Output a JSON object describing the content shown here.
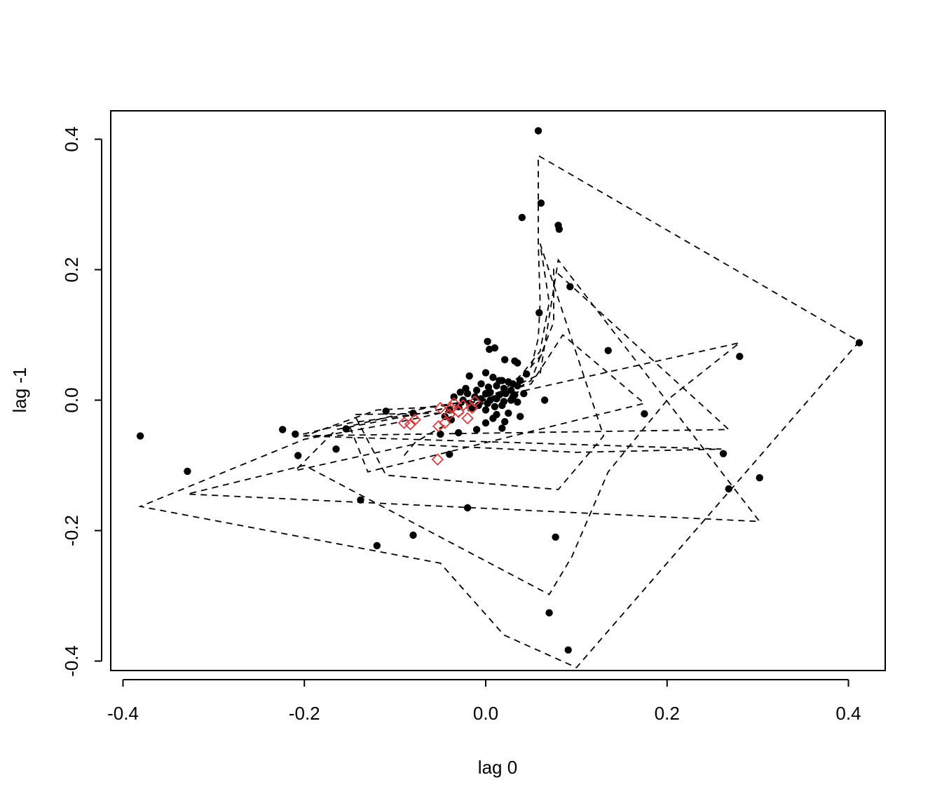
{
  "chart_data": {
    "type": "scatter",
    "title": "",
    "xlabel": "lag 0",
    "ylabel": "lag -1",
    "xlim": [
      -0.4,
      0.44
    ],
    "ylim": [
      -0.415,
      0.445
    ],
    "xticks": [
      -0.4,
      -0.2,
      0.0,
      0.2,
      0.4
    ],
    "xtick_labels": [
      "-0.4",
      "-0.2",
      "0.0",
      "0.2",
      "0.4"
    ],
    "yticks": [
      -0.4,
      -0.2,
      0.0,
      0.2,
      0.4
    ],
    "ytick_labels": [
      "-0.4",
      "-0.2",
      "0.0",
      "0.2",
      "0.4"
    ],
    "grid": false,
    "legend": "none",
    "colors": {
      "points": "#000000",
      "highlight": "#df3b3b",
      "path": "#000000"
    },
    "series": [
      {
        "kind": "points",
        "marker": "filled-circle",
        "points": [
          [
            0.058,
            0.413
          ],
          [
            0.061,
            0.302
          ],
          [
            0.04,
            0.28
          ],
          [
            0.08,
            0.268
          ],
          [
            0.081,
            0.262
          ],
          [
            0.093,
            0.174
          ],
          [
            0.059,
            0.134
          ],
          [
            0.412,
            0.088
          ],
          [
            0.28,
            0.067
          ],
          [
            0.135,
            0.076
          ],
          [
            -0.381,
            -0.055
          ],
          [
            -0.329,
            -0.109
          ],
          [
            -0.224,
            -0.045
          ],
          [
            -0.21,
            -0.052
          ],
          [
            -0.207,
            -0.085
          ],
          [
            -0.165,
            -0.075
          ],
          [
            -0.154,
            -0.044
          ],
          [
            -0.138,
            -0.153
          ],
          [
            -0.12,
            -0.223
          ],
          [
            -0.11,
            -0.017
          ],
          [
            -0.08,
            -0.02
          ],
          [
            -0.08,
            -0.207
          ],
          [
            -0.05,
            -0.052
          ],
          [
            -0.04,
            -0.083
          ],
          [
            -0.03,
            -0.05
          ],
          [
            -0.02,
            -0.165
          ],
          [
            -0.01,
            -0.045
          ],
          [
            0.0,
            -0.035
          ],
          [
            0.018,
            -0.043
          ],
          [
            0.021,
            -0.033
          ],
          [
            0.038,
            -0.025
          ],
          [
            0.065,
            0.0
          ],
          [
            0.175,
            -0.021
          ],
          [
            0.262,
            -0.082
          ],
          [
            0.268,
            -0.136
          ],
          [
            0.302,
            -0.119
          ],
          [
            0.077,
            -0.21
          ],
          [
            0.07,
            -0.326
          ],
          [
            0.091,
            -0.383
          ],
          [
            0.002,
            0.09
          ],
          [
            0.004,
            0.078
          ],
          [
            0.01,
            0.08
          ],
          [
            0.021,
            0.062
          ],
          [
            0.032,
            0.06
          ],
          [
            0.035,
            0.057
          ],
          [
            0.045,
            0.04
          ],
          [
            -0.018,
            0.037
          ],
          [
            0.0,
            0.042
          ],
          [
            0.008,
            0.035
          ],
          [
            0.015,
            0.03
          ],
          [
            0.025,
            0.028
          ],
          [
            0.03,
            0.025
          ],
          [
            0.038,
            0.03
          ],
          [
            -0.005,
            0.025
          ],
          [
            0.003,
            0.02
          ],
          [
            0.012,
            0.022
          ],
          [
            0.02,
            0.018
          ],
          [
            0.028,
            0.015
          ],
          [
            0.035,
            0.022
          ],
          [
            -0.01,
            0.015
          ],
          [
            0.0,
            0.01
          ],
          [
            0.005,
            0.012
          ],
          [
            0.015,
            0.008
          ],
          [
            0.022,
            0.01
          ],
          [
            0.03,
            0.005
          ],
          [
            -0.02,
            0.01
          ],
          [
            -0.012,
            0.005
          ],
          [
            -0.005,
            0.002
          ],
          [
            0.005,
            0.0
          ],
          [
            0.012,
            0.002
          ],
          [
            0.02,
            -0.002
          ],
          [
            0.028,
            0.0
          ],
          [
            -0.025,
            0.0
          ],
          [
            -0.018,
            -0.005
          ],
          [
            -0.008,
            -0.008
          ],
          [
            0.002,
            -0.005
          ],
          [
            0.01,
            -0.01
          ],
          [
            0.018,
            -0.008
          ],
          [
            0.035,
            -0.003
          ],
          [
            -0.03,
            -0.01
          ],
          [
            -0.035,
            0.005
          ],
          [
            -0.028,
            0.012
          ],
          [
            -0.015,
            -0.012
          ],
          [
            0.0,
            -0.015
          ],
          [
            0.012,
            -0.022
          ],
          [
            0.025,
            -0.02
          ],
          [
            -0.04,
            -0.015
          ],
          [
            -0.045,
            -0.025
          ],
          [
            -0.038,
            -0.03
          ],
          [
            0.018,
            0.03
          ],
          [
            0.008,
            -0.028
          ],
          [
            -0.022,
            0.018
          ],
          [
            0.032,
            0.008
          ],
          [
            0.042,
            0.01
          ]
        ]
      },
      {
        "kind": "points",
        "marker": "open-diamond",
        "color": "red",
        "points": [
          [
            -0.09,
            -0.035
          ],
          [
            -0.083,
            -0.037
          ],
          [
            -0.078,
            -0.03
          ],
          [
            -0.053,
            -0.091
          ],
          [
            -0.052,
            -0.04
          ],
          [
            -0.05,
            -0.012
          ],
          [
            -0.045,
            -0.035
          ],
          [
            -0.04,
            -0.022
          ],
          [
            -0.038,
            -0.012
          ],
          [
            -0.035,
            -0.005
          ],
          [
            -0.03,
            -0.018
          ],
          [
            -0.025,
            -0.008
          ],
          [
            -0.02,
            -0.028
          ],
          [
            -0.015,
            -0.012
          ],
          [
            -0.012,
            -0.002
          ]
        ]
      },
      {
        "kind": "path",
        "line": "dashed",
        "points": [
          [
            -0.09,
            -0.085
          ],
          [
            -0.078,
            -0.065
          ],
          [
            -0.06,
            -0.05
          ],
          [
            -0.04,
            -0.035
          ],
          [
            -0.025,
            -0.02
          ],
          [
            -0.01,
            -0.01
          ],
          [
            0.005,
            0.0
          ],
          [
            0.02,
            0.01
          ],
          [
            0.035,
            0.025
          ],
          [
            0.05,
            0.05
          ],
          [
            0.058,
            0.095
          ],
          [
            0.06,
            0.15
          ],
          [
            0.058,
            0.24
          ],
          [
            0.058,
            0.375
          ],
          [
            0.412,
            0.09
          ],
          [
            0.1,
            -0.41
          ],
          [
            0.02,
            -0.36
          ],
          [
            -0.05,
            -0.25
          ],
          [
            -0.381,
            -0.163
          ],
          [
            -0.2,
            -0.06
          ],
          [
            -0.1,
            -0.035
          ],
          [
            -0.05,
            -0.02
          ],
          [
            -0.02,
            -0.01
          ],
          [
            0.0,
            0.0
          ],
          [
            0.02,
            0.015
          ],
          [
            0.04,
            0.04
          ],
          [
            0.06,
            0.075
          ],
          [
            0.07,
            0.15
          ],
          [
            0.06,
            0.24
          ],
          [
            0.13,
            -0.055
          ],
          [
            0.08,
            -0.137
          ],
          [
            -0.11,
            -0.115
          ],
          [
            -0.145,
            -0.022
          ],
          [
            -0.05,
            -0.02
          ],
          [
            0.01,
            0.0
          ],
          [
            0.05,
            0.03
          ],
          [
            0.075,
            0.12
          ],
          [
            0.075,
            0.2
          ],
          [
            0.268,
            -0.045
          ],
          [
            -0.21,
            -0.055
          ],
          [
            -0.15,
            -0.035
          ],
          [
            -0.07,
            -0.02
          ],
          [
            0.0,
            0.0
          ],
          [
            0.06,
            0.04
          ],
          [
            0.08,
            0.215
          ],
          [
            0.302,
            -0.186
          ],
          [
            -0.329,
            -0.144
          ],
          [
            -0.2,
            -0.1
          ],
          [
            0.07,
            -0.298
          ],
          [
            0.095,
            -0.24
          ],
          [
            0.135,
            -0.11
          ],
          [
            0.2,
            0.0
          ],
          [
            0.28,
            0.088
          ],
          [
            0.06,
            0.02
          ],
          [
            -0.07,
            -0.02
          ],
          [
            -0.165,
            -0.045
          ],
          [
            -0.21,
            -0.108
          ],
          [
            -0.08,
            -0.068
          ],
          [
            0.1,
            -0.08
          ],
          [
            0.26,
            -0.075
          ],
          [
            -0.2,
            -0.055
          ],
          [
            -0.12,
            -0.015
          ],
          [
            -0.05,
            -0.01
          ],
          [
            0.0,
            0.005
          ],
          [
            0.05,
            0.025
          ],
          [
            0.085,
            0.1
          ],
          [
            0.175,
            -0.005
          ],
          [
            -0.13,
            -0.11
          ],
          [
            -0.15,
            -0.04
          ],
          [
            -0.06,
            -0.01
          ],
          [
            -0.01,
            0.0
          ],
          [
            0.03,
            0.02
          ],
          [
            0.065,
            0.075
          ]
        ]
      }
    ]
  }
}
